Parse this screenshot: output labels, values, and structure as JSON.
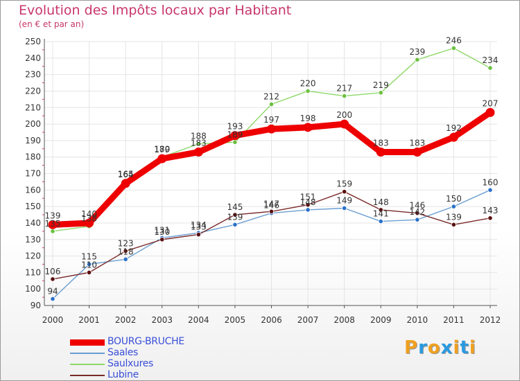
{
  "title": "Evolution des Impôts locaux par Habitant",
  "subtitle": "(en € et par an)",
  "logo": {
    "letters": [
      "P",
      "r",
      "o",
      "x",
      "i",
      "t",
      "i"
    ],
    "colors": [
      "#f0a020",
      "#2a9ae0",
      "#f0a020",
      "#2a9ae0",
      "#f0a020",
      "#2a9ae0",
      "#f0a020"
    ]
  },
  "chart_data": {
    "type": "line",
    "title": "Evolution des Impôts locaux par Habitant",
    "ylabel": "(en € et par an)",
    "xlabel": "",
    "categories": [
      "2000",
      "2001",
      "2002",
      "2003",
      "2004",
      "2005",
      "2006",
      "2007",
      "2008",
      "2009",
      "2010",
      "2011",
      "2012"
    ],
    "ylim": [
      90,
      250
    ],
    "yticks": [
      90,
      100,
      110,
      120,
      130,
      140,
      150,
      160,
      170,
      180,
      190,
      200,
      210,
      220,
      230,
      240,
      250
    ],
    "grid": true,
    "legend_position": "bottom-left",
    "series": [
      {
        "name": "BOURG-BRUCHE",
        "color": "#ee0000",
        "dot": "#ee0000",
        "values": [
          139,
          140,
          164,
          179,
          183,
          193,
          197,
          198,
          200,
          183,
          183,
          192,
          207
        ],
        "labels": [
          "139",
          "140",
          "164",
          "179",
          "183",
          "193",
          "197",
          "198",
          "200",
          "183",
          "183",
          "192",
          "207"
        ]
      },
      {
        "name": "Saales",
        "color": "#6a9ed0",
        "dot": "#2a70c8",
        "values": [
          94,
          115,
          118,
          131,
          134,
          139,
          146,
          148,
          149,
          141,
          142,
          150,
          160
        ],
        "labels": [
          "94",
          "115",
          "118",
          "131",
          "134",
          "139",
          "146",
          "148",
          "149",
          "141",
          "142",
          "150",
          "160"
        ]
      },
      {
        "name": "Saulxures",
        "color": "#8ed868",
        "dot": "#6cc040",
        "values": [
          135,
          138,
          165,
          180,
          188,
          189,
          212,
          220,
          217,
          219,
          239,
          246,
          234
        ],
        "labels": [
          "135",
          "138",
          "165",
          "180",
          "188",
          "189",
          "212",
          "220",
          "217",
          "219",
          "239",
          "246",
          "234"
        ]
      },
      {
        "name": "Lubine",
        "color": "#7a2a2a",
        "dot": "#5a1010",
        "values": [
          106,
          110,
          123,
          130,
          133,
          145,
          147,
          151,
          159,
          148,
          146,
          139,
          143
        ],
        "labels": [
          "106",
          "110",
          "123",
          "130",
          "133",
          "145",
          "147",
          "151",
          "159",
          "148",
          "146",
          "139",
          "143"
        ]
      }
    ]
  }
}
